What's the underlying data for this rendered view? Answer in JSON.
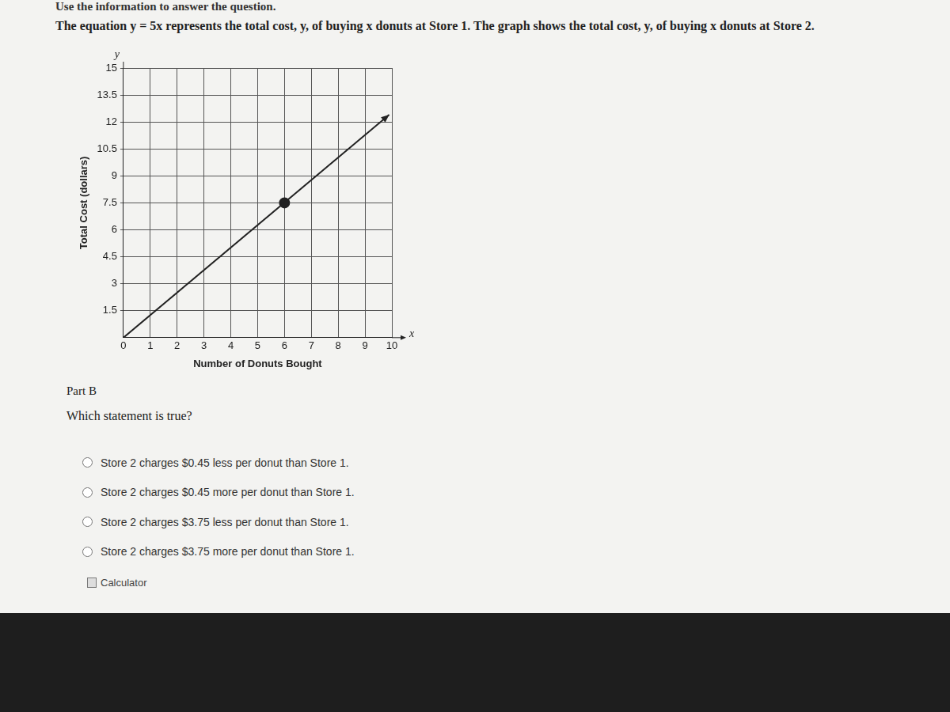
{
  "header": {
    "intro": "Use the information to answer the question.",
    "stem": "The equation y = 5x represents the total cost, y, of buying x donuts at Store 1. The graph shows the total cost, y, of buying x donuts at Store 2."
  },
  "chart_data": {
    "type": "line",
    "x_label": "Number of Donuts Bought",
    "y_label": "Total Cost (dollars)",
    "x_axis_letter": "x",
    "y_axis_letter": "y",
    "series": [
      {
        "x": [
          0,
          9.9
        ],
        "values": [
          0,
          12.4
        ],
        "color": "#222222",
        "marker": "none",
        "line_style": "solid"
      },
      {
        "type": "scatter",
        "x": [
          6
        ],
        "values": [
          7.5
        ],
        "color": "#222222",
        "marker": "circle"
      }
    ],
    "xlim": [
      0,
      10
    ],
    "xticks": [
      0,
      1,
      2,
      3,
      4,
      5,
      6,
      7,
      8,
      9,
      10
    ],
    "ylim": [
      0,
      15
    ],
    "yticks": [
      1.5,
      3,
      4.5,
      6,
      7.5,
      9,
      10.5,
      12,
      13.5,
      15
    ],
    "grid": true
  },
  "question": {
    "part": "Part B",
    "prompt": "Which statement is true?",
    "options": [
      "Store 2 charges $0.45 less per donut than Store 1.",
      "Store 2 charges $0.45 more per donut than Store 1.",
      "Store 2 charges $3.75 less per donut than Store 1.",
      "Store 2 charges $3.75 more per donut than Store 1."
    ],
    "tool": "Calculator"
  }
}
